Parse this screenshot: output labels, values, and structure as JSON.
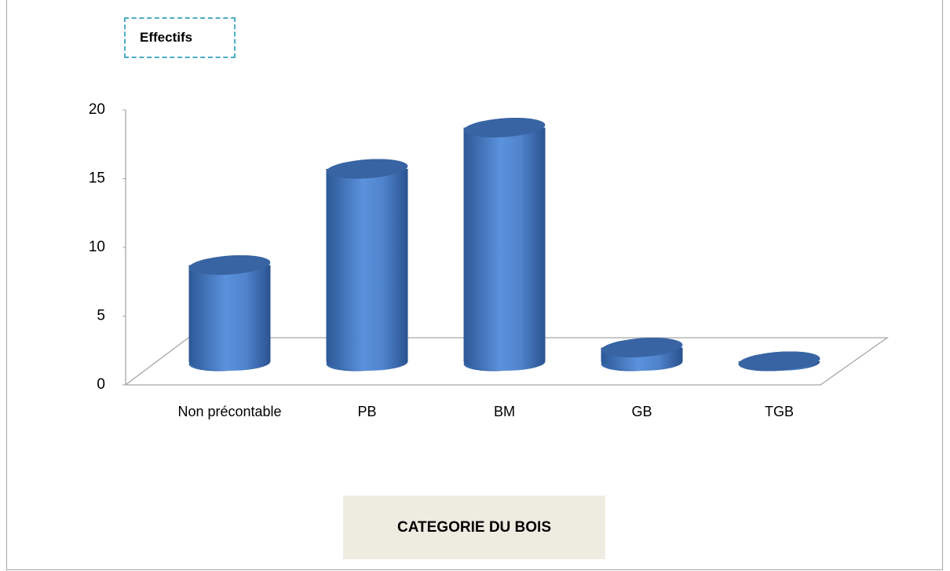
{
  "chart_data": {
    "type": "bar3d_cylinder",
    "title": "Effectifs",
    "x_label": "CATEGORIE DU BOIS",
    "categories": [
      "Non précontable",
      "PB",
      "BM",
      "GB",
      "TGB"
    ],
    "values": [
      7,
      14,
      17,
      1,
      0
    ],
    "color": "#4f81c7",
    "ylim": [
      0,
      20
    ],
    "yticks": [
      0,
      5,
      10,
      15,
      20
    ],
    "grid": false
  }
}
